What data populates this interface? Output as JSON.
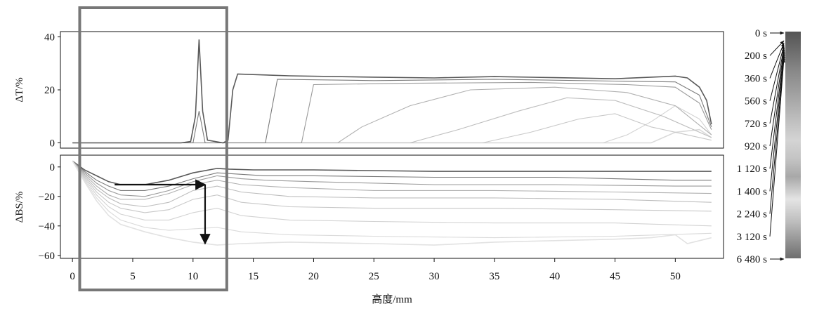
{
  "chart_data": [
    {
      "type": "line",
      "panel": "transmission",
      "ylabel": "ΔT/%",
      "xlim": [
        -1,
        54
      ],
      "ylim": [
        -2,
        42
      ],
      "yticks": [
        0,
        20,
        40
      ],
      "ytick_labels": [
        "0",
        "20",
        "40"
      ],
      "series": [
        {
          "values": [
            [
              0,
              0
            ],
            [
              9,
              0
            ],
            [
              9.8,
              0.5
            ],
            [
              10.2,
              10
            ],
            [
              10.5,
              39
            ],
            [
              10.8,
              12
            ],
            [
              11.2,
              1
            ],
            [
              12.5,
              0
            ],
            [
              12.9,
              1
            ],
            [
              13.3,
              20
            ],
            [
              13.7,
              26
            ],
            [
              18,
              25.3
            ],
            [
              25,
              24.8
            ],
            [
              30,
              24.5
            ],
            [
              35,
              25
            ],
            [
              40,
              24.6
            ],
            [
              45,
              24.2
            ],
            [
              48,
              24.8
            ],
            [
              50,
              25.2
            ],
            [
              51,
              24.5
            ],
            [
              52,
              21
            ],
            [
              52.6,
              16
            ],
            [
              53,
              7
            ]
          ]
        },
        {
          "values": [
            [
              0,
              0
            ],
            [
              10,
              0
            ],
            [
              10.5,
              12
            ],
            [
              11,
              0
            ],
            [
              16,
              0
            ],
            [
              17,
              24
            ],
            [
              25,
              23.5
            ],
            [
              35,
              24
            ],
            [
              45,
              23.3
            ],
            [
              50,
              23
            ],
            [
              52,
              18
            ],
            [
              53,
              6
            ]
          ]
        },
        {
          "values": [
            [
              0,
              0
            ],
            [
              19,
              0
            ],
            [
              20,
              22
            ],
            [
              28,
              22.5
            ],
            [
              38,
              22.8
            ],
            [
              46,
              22
            ],
            [
              50,
              21
            ],
            [
              52,
              15
            ],
            [
              53,
              5
            ]
          ]
        },
        {
          "values": [
            [
              0,
              0
            ],
            [
              22,
              0
            ],
            [
              24,
              6
            ],
            [
              28,
              14
            ],
            [
              33,
              20
            ],
            [
              40,
              21
            ],
            [
              46,
              19
            ],
            [
              50,
              14
            ],
            [
              53,
              3
            ]
          ]
        },
        {
          "values": [
            [
              0,
              0
            ],
            [
              28,
              0
            ],
            [
              32,
              5
            ],
            [
              37,
              12
            ],
            [
              41,
              17
            ],
            [
              45,
              16
            ],
            [
              49,
              10
            ],
            [
              53,
              2
            ]
          ]
        },
        {
          "values": [
            [
              0,
              0
            ],
            [
              34,
              0
            ],
            [
              38,
              4
            ],
            [
              42,
              9
            ],
            [
              45,
              11
            ],
            [
              48,
              6
            ],
            [
              53,
              1
            ]
          ]
        },
        {
          "values": [
            [
              0,
              0
            ],
            [
              44,
              0
            ],
            [
              46,
              3
            ],
            [
              48,
              8
            ],
            [
              50,
              14
            ],
            [
              52,
              9
            ],
            [
              53,
              3
            ]
          ]
        },
        {
          "values": [
            [
              0,
              0
            ],
            [
              48,
              0
            ],
            [
              50,
              4
            ],
            [
              52,
              5
            ],
            [
              53,
              2
            ]
          ]
        }
      ]
    },
    {
      "type": "line",
      "panel": "backscattering",
      "ylabel": "ΔBS/%",
      "xlabel": "高度/mm",
      "xlim": [
        -1,
        54
      ],
      "ylim": [
        -62,
        8
      ],
      "xticks": [
        0,
        5,
        10,
        15,
        20,
        25,
        30,
        35,
        40,
        45,
        50
      ],
      "xtick_labels": [
        "0",
        "5",
        "10",
        "15",
        "20",
        "25",
        "30",
        "35",
        "40",
        "45",
        "50"
      ],
      "yticks": [
        0,
        -20,
        -40,
        -60
      ],
      "ytick_labels": [
        "0",
        "−20",
        "−40",
        "−60"
      ],
      "series": [
        {
          "values": [
            [
              0,
              4
            ],
            [
              1,
              -2
            ],
            [
              2,
              -6
            ],
            [
              3,
              -10
            ],
            [
              4,
              -12
            ],
            [
              6,
              -12
            ],
            [
              8,
              -9
            ],
            [
              10,
              -4
            ],
            [
              12,
              -1
            ],
            [
              13,
              -1.5
            ],
            [
              15,
              -2
            ],
            [
              20,
              -2
            ],
            [
              30,
              -3
            ],
            [
              40,
              -3
            ],
            [
              50,
              -3
            ],
            [
              53,
              -3
            ]
          ]
        },
        {
          "values": [
            [
              0,
              4
            ],
            [
              1,
              -3
            ],
            [
              2,
              -9
            ],
            [
              3,
              -13
            ],
            [
              4,
              -16
            ],
            [
              6,
              -16
            ],
            [
              8,
              -13
            ],
            [
              10,
              -8
            ],
            [
              12,
              -4
            ],
            [
              14,
              -5
            ],
            [
              16,
              -6
            ],
            [
              20,
              -6
            ],
            [
              30,
              -7
            ],
            [
              40,
              -7
            ],
            [
              50,
              -9
            ],
            [
              53,
              -9
            ]
          ]
        },
        {
          "values": [
            [
              0,
              4
            ],
            [
              1,
              -4
            ],
            [
              2,
              -11
            ],
            [
              3,
              -16
            ],
            [
              4,
              -19
            ],
            [
              6,
              -20
            ],
            [
              8,
              -16
            ],
            [
              10,
              -10
            ],
            [
              12,
              -6
            ],
            [
              14,
              -8
            ],
            [
              16,
              -9
            ],
            [
              20,
              -10
            ],
            [
              30,
              -12
            ],
            [
              40,
              -12
            ],
            [
              50,
              -13
            ],
            [
              53,
              -13
            ]
          ]
        },
        {
          "values": [
            [
              0,
              4
            ],
            [
              1,
              -5
            ],
            [
              2,
              -13
            ],
            [
              3,
              -19
            ],
            [
              4,
              -22
            ],
            [
              6,
              -22
            ],
            [
              8,
              -18
            ],
            [
              10,
              -12
            ],
            [
              12,
              -9
            ],
            [
              14,
              -12
            ],
            [
              18,
              -14
            ],
            [
              25,
              -16
            ],
            [
              35,
              -16
            ],
            [
              45,
              -17
            ],
            [
              53,
              -18
            ]
          ]
        },
        {
          "values": [
            [
              0,
              4
            ],
            [
              1,
              -6
            ],
            [
              2,
              -15
            ],
            [
              3,
              -21
            ],
            [
              4,
              -25
            ],
            [
              6,
              -27
            ],
            [
              8,
              -24
            ],
            [
              10,
              -16
            ],
            [
              12,
              -13
            ],
            [
              14,
              -17
            ],
            [
              18,
              -20
            ],
            [
              25,
              -21
            ],
            [
              35,
              -21
            ],
            [
              45,
              -22
            ],
            [
              53,
              -24
            ]
          ]
        },
        {
          "values": [
            [
              0,
              4
            ],
            [
              1,
              -7
            ],
            [
              2,
              -17
            ],
            [
              3,
              -24
            ],
            [
              4,
              -28
            ],
            [
              6,
              -31
            ],
            [
              8,
              -29
            ],
            [
              10,
              -22
            ],
            [
              12,
              -19
            ],
            [
              14,
              -24
            ],
            [
              18,
              -27
            ],
            [
              25,
              -28
            ],
            [
              35,
              -28
            ],
            [
              45,
              -29
            ],
            [
              53,
              -30
            ]
          ]
        },
        {
          "values": [
            [
              0,
              4
            ],
            [
              1,
              -8
            ],
            [
              2,
              -19
            ],
            [
              3,
              -27
            ],
            [
              4,
              -32
            ],
            [
              6,
              -36
            ],
            [
              8,
              -36
            ],
            [
              10,
              -31
            ],
            [
              12,
              -28
            ],
            [
              14,
              -33
            ],
            [
              18,
              -36
            ],
            [
              25,
              -37
            ],
            [
              35,
              -38
            ],
            [
              45,
              -38
            ],
            [
              53,
              -40
            ]
          ]
        },
        {
          "values": [
            [
              0,
              4
            ],
            [
              1,
              -9
            ],
            [
              2,
              -21
            ],
            [
              3,
              -30
            ],
            [
              4,
              -36
            ],
            [
              6,
              -41
            ],
            [
              8,
              -43
            ],
            [
              10,
              -42
            ],
            [
              12,
              -41
            ],
            [
              14,
              -44
            ],
            [
              18,
              -46
            ],
            [
              25,
              -47
            ],
            [
              35,
              -48
            ],
            [
              45,
              -47
            ],
            [
              53,
              -45
            ]
          ]
        },
        {
          "values": [
            [
              0,
              4
            ],
            [
              1,
              -10
            ],
            [
              2,
              -23
            ],
            [
              3,
              -33
            ],
            [
              4,
              -39
            ],
            [
              6,
              -44
            ],
            [
              8,
              -48
            ],
            [
              10,
              -51
            ],
            [
              12,
              -53
            ],
            [
              14,
              -52
            ],
            [
              18,
              -51
            ],
            [
              25,
              -52
            ],
            [
              30,
              -53
            ],
            [
              35,
              -51
            ],
            [
              40,
              -50
            ],
            [
              45,
              -49
            ],
            [
              48,
              -48
            ],
            [
              50,
              -46
            ],
            [
              51,
              -52
            ],
            [
              52,
              -50
            ],
            [
              53,
              -48
            ]
          ]
        }
      ]
    }
  ],
  "legend": {
    "labels": [
      "0 s",
      "200 s",
      "360 s",
      "560 s",
      "720 s",
      "920 s",
      "1 120 s",
      "1 400 s",
      "2 240 s",
      "3 120 s",
      "6 480 s"
    ],
    "colors": [
      "#555555",
      "#6b6b6b",
      "#838383",
      "#9a9a9a",
      "#b4b4b4",
      "#cfcfcf",
      "#c2c2c2",
      "#a9a9a9",
      "#e2e2e2",
      "#bdbdbd",
      "#727272"
    ]
  },
  "annotations": {
    "box": {
      "x": [
        0.6,
        12.8
      ]
    },
    "horizontal_arrow": {
      "from": [
        3.5,
        -12
      ],
      "to": [
        11,
        -12
      ]
    },
    "vertical_arrow": {
      "from": [
        11,
        -12
      ],
      "to": [
        11,
        -52
      ]
    }
  }
}
